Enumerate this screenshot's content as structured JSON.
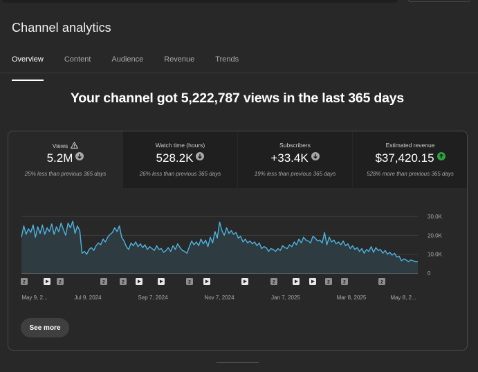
{
  "page_title": "Channel analytics",
  "tabs": [
    {
      "label": "Overview",
      "active": true
    },
    {
      "label": "Content",
      "active": false
    },
    {
      "label": "Audience",
      "active": false
    },
    {
      "label": "Revenue",
      "active": false
    },
    {
      "label": "Trends",
      "active": false
    }
  ],
  "headline": "Your channel got 5,222,787 views in the last 365 days",
  "metrics": [
    {
      "label": "Views",
      "value": "5.2M",
      "trend": "down",
      "comparison": "25% less than previous 365 days",
      "warning_icon": true
    },
    {
      "label": "Watch time (hours)",
      "value": "528.2K",
      "trend": "down",
      "comparison": "26% less than previous 365 days"
    },
    {
      "label": "Subscribers",
      "value": "+33.4K",
      "trend": "down",
      "comparison": "19% less than previous 365 days"
    },
    {
      "label": "Estimated revenue",
      "value": "$37,420.15",
      "trend": "up",
      "comparison": "528% more than previous 365 days"
    }
  ],
  "colors": {
    "line": "#4fb4e0",
    "area": "#2e3b41",
    "trend_up": "#2ba640",
    "trend_down": "#a9a9a9"
  },
  "chart_data": {
    "type": "area",
    "y_ticks": [
      "0",
      "10.0K",
      "20.0K",
      "30.0K"
    ],
    "ylim": [
      0,
      30000
    ],
    "grid": true,
    "x_labels": [
      "May 9, 2...",
      "Jul 9, 2024",
      "Sep 7, 2024",
      "Nov 7, 2024",
      "Jan 7, 2025",
      "Mar 8, 2025",
      "May 8, 2..."
    ],
    "series": [
      {
        "values": [
          19000,
          25000,
          20500,
          23500,
          21500,
          25500,
          19000,
          24500,
          21000,
          25500,
          20500,
          24000,
          22000,
          26000,
          20500,
          24500,
          22000,
          26500,
          23000,
          20000,
          26500,
          24000,
          27500,
          21000,
          25000,
          22500,
          10500,
          11500,
          10000,
          12500,
          13500,
          12000,
          14500,
          16000,
          15000,
          18000,
          16500,
          19000,
          20500,
          21500,
          24000,
          22000,
          25000,
          19000,
          17000,
          14000,
          12500,
          16000,
          14500,
          16500,
          14000,
          15500,
          13500,
          15000,
          12500,
          14000,
          13000,
          12000,
          14500,
          12500,
          13000,
          11000,
          12000,
          13500,
          11500,
          14500,
          12500,
          15500,
          13500,
          12000,
          11500,
          10500,
          14000,
          17000,
          15000,
          16500,
          14500,
          18000,
          15500,
          17500,
          14000,
          19000,
          16000,
          22000,
          18500,
          27000,
          22500,
          20000,
          24000,
          21000,
          22500,
          20500,
          21500,
          18500,
          19500,
          16500,
          18000,
          16000,
          17000,
          15500,
          16500,
          14500,
          16000,
          13000,
          14000,
          13500,
          11500,
          13000,
          12500,
          11500,
          13000,
          12000,
          14500,
          13500,
          13000,
          15000,
          14000,
          16500,
          15000,
          18000,
          16000,
          19000,
          17500,
          17000,
          16000,
          19500,
          18500,
          17000,
          17500,
          16000,
          21500,
          15000,
          19000,
          16500,
          17500,
          15500,
          16500,
          15000,
          17000,
          14500,
          15500,
          13000,
          14500,
          12500,
          13500,
          11500,
          13000,
          10500,
          12500,
          11500,
          14000,
          11000,
          13500,
          12000,
          12500,
          10500,
          12000,
          10000,
          11000,
          9500,
          10500,
          8500,
          9000,
          6500,
          7500,
          7000,
          6000,
          7000,
          6500,
          6000,
          6000
        ]
      }
    ],
    "annotations": [
      "2",
      "play",
      "2",
      "2",
      "2",
      "play",
      "play",
      "2",
      "play",
      "play",
      "2",
      "play",
      "play",
      "2",
      "2",
      "2"
    ]
  },
  "see_more_label": "See more"
}
